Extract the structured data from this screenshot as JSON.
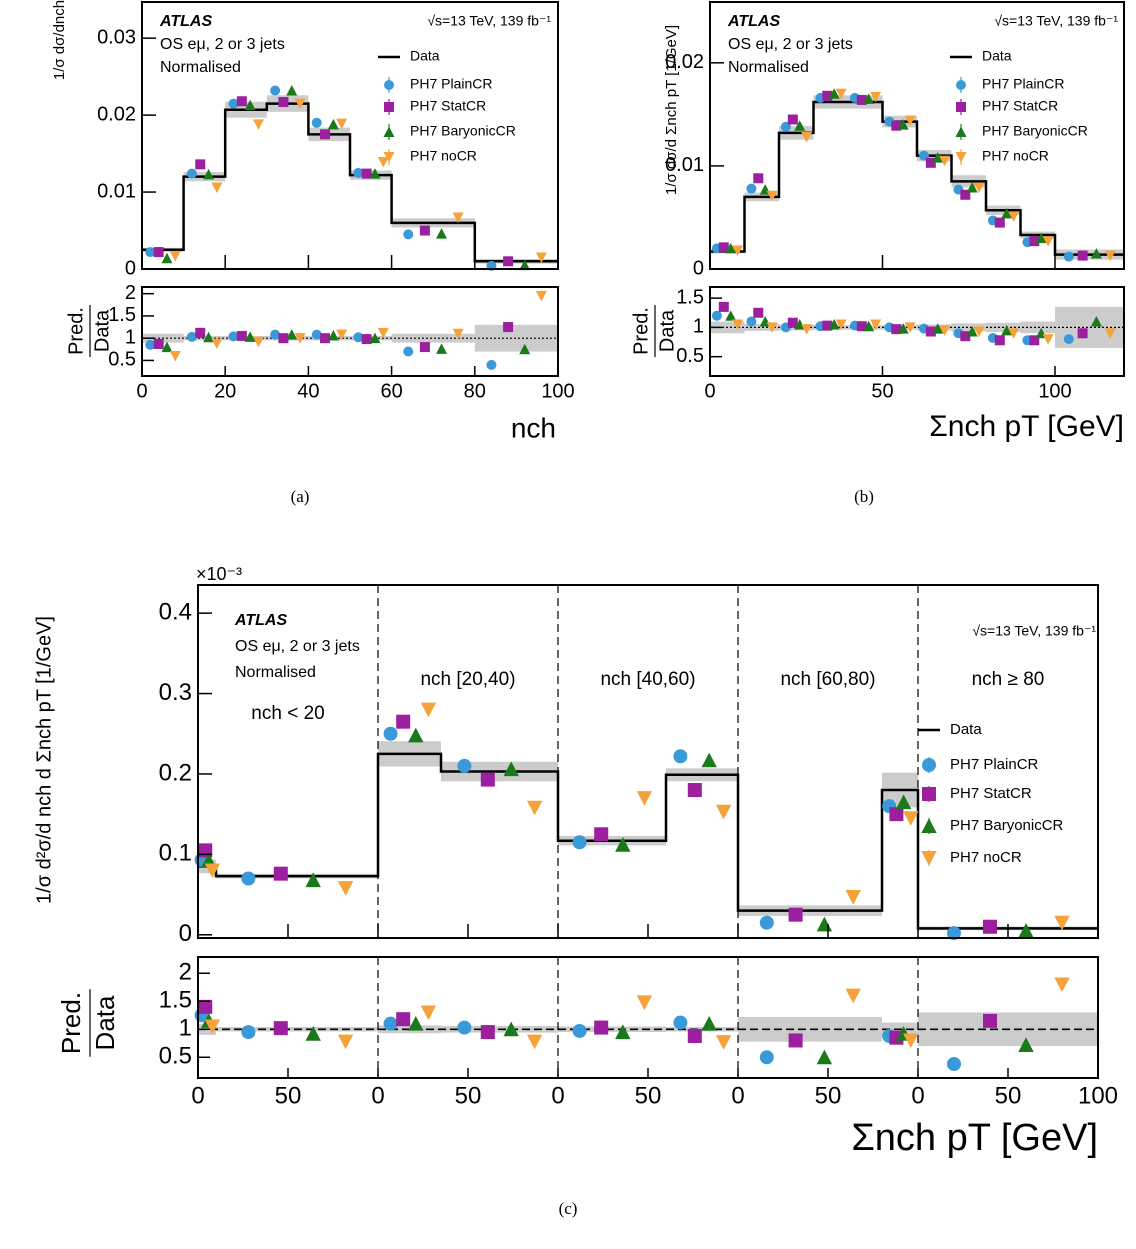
{
  "chart_data": [
    {
      "type": "histogram",
      "caption": "(a)",
      "x_label": "nch",
      "y_label": "1/σ dσ/dnch",
      "ratio_y_label": {
        "numerator": "Pred.",
        "denominator": "Data"
      },
      "texts": {
        "experiment": "ATLAS",
        "selection": "OS eμ, 2 or 3 jets",
        "normalisation": "Normalised",
        "energy": "√s=13 TeV, 139 fb⁻¹"
      },
      "bins": [
        0,
        10,
        20,
        30,
        40,
        50,
        60,
        80,
        100
      ],
      "data": {
        "name": "Data",
        "color": "#000000",
        "values": [
          0.0025,
          0.012,
          0.0207,
          0.0215,
          0.0175,
          0.0122,
          0.006,
          0.001
        ],
        "uncertainty": [
          0.1,
          0.05,
          0.05,
          0.05,
          0.05,
          0.05,
          0.1,
          0.3
        ]
      },
      "series": [
        {
          "name": "PH7 PlainCR",
          "color": "#3a9ad9",
          "marker": "circle",
          "values": [
            0.0022,
            0.0124,
            0.0215,
            0.0232,
            0.019,
            0.0125,
            0.0045,
            0.0004
          ],
          "ratio_values": [
            0.85,
            1.03,
            1.04,
            1.08,
            1.08,
            1.02,
            0.7,
            0.4
          ]
        },
        {
          "name": "PH7 StatCR",
          "color": "#9b1f9e",
          "marker": "square",
          "values": [
            0.0022,
            0.0136,
            0.0218,
            0.0217,
            0.0175,
            0.0124,
            0.005,
            0.001
          ],
          "ratio_values": [
            0.87,
            1.12,
            1.05,
            1.0,
            1.0,
            0.98,
            0.8,
            1.25
          ]
        },
        {
          "name": "PH7 BaryonicCR",
          "color": "#1a7a1a",
          "marker": "triangle-up",
          "values": [
            0.0014,
            0.0123,
            0.0213,
            0.0232,
            0.0188,
            0.0124,
            0.0046,
            0.0005
          ],
          "ratio_values": [
            0.8,
            1.02,
            1.03,
            1.08,
            1.06,
            1.0,
            0.76,
            0.75
          ]
        },
        {
          "name": "PH7 noCR",
          "color": "#f5a23a",
          "marker": "triangle-down",
          "values": [
            0.0017,
            0.0106,
            0.0188,
            0.0215,
            0.0189,
            0.0139,
            0.0067,
            0.0015
          ],
          "ratio_values": [
            0.6,
            0.88,
            0.92,
            1.0,
            1.08,
            1.12,
            1.1,
            1.95
          ]
        }
      ],
      "xlim": [
        0,
        100
      ],
      "xticks": [
        0,
        20,
        40,
        60,
        80,
        100
      ],
      "ylim": [
        0,
        0.0347
      ],
      "yticks": [
        0,
        0.01,
        0.02,
        0.03
      ],
      "ratio_ylim": [
        0.15,
        2.15
      ],
      "ratio_yticks": [
        0.5,
        1,
        1.5,
        2
      ],
      "reference_line": 1
    },
    {
      "type": "histogram",
      "caption": "(b)",
      "x_label": "Σnch pT [GeV]",
      "y_label": "1/σ dσ/d Σnch pT [1/GeV]",
      "ratio_y_label": {
        "numerator": "Pred.",
        "denominator": "Data"
      },
      "texts": {
        "experiment": "ATLAS",
        "selection": "OS eμ, 2 or 3 jets",
        "normalisation": "Normalised",
        "energy": "√s=13 TeV, 139 fb⁻¹"
      },
      "bins": [
        0,
        10,
        20,
        30,
        40,
        50,
        60,
        70,
        80,
        90,
        100,
        120
      ],
      "data": {
        "name": "Data",
        "color": "#000000",
        "values": [
          0.0017,
          0.007,
          0.0132,
          0.0162,
          0.0162,
          0.0143,
          0.011,
          0.0085,
          0.0057,
          0.0033,
          0.0014
        ],
        "uncertainty": [
          0.1,
          0.06,
          0.05,
          0.04,
          0.04,
          0.04,
          0.05,
          0.07,
          0.08,
          0.1,
          0.35
        ]
      },
      "series": [
        {
          "name": "PH7 PlainCR",
          "color": "#3a9ad9",
          "marker": "circle",
          "values": [
            0.002,
            0.0078,
            0.0138,
            0.0166,
            0.0166,
            0.0143,
            0.011,
            0.0077,
            0.0047,
            0.0026,
            0.0012
          ],
          "ratio_values": [
            1.2,
            1.1,
            1.0,
            1.02,
            1.03,
            1.0,
            0.98,
            0.9,
            0.82,
            0.78,
            0.8
          ]
        },
        {
          "name": "PH7 StatCR",
          "color": "#9b1f9e",
          "marker": "square",
          "values": [
            0.0021,
            0.0088,
            0.0145,
            0.0168,
            0.0164,
            0.0139,
            0.0103,
            0.0072,
            0.0045,
            0.0027,
            0.0013
          ],
          "ratio_values": [
            1.35,
            1.25,
            1.08,
            1.03,
            1.02,
            0.97,
            0.93,
            0.85,
            0.78,
            0.78,
            0.9
          ]
        },
        {
          "name": "PH7 BaryonicCR",
          "color": "#1a7a1a",
          "marker": "triangle-up",
          "values": [
            0.002,
            0.0077,
            0.0139,
            0.017,
            0.0165,
            0.014,
            0.0108,
            0.0079,
            0.0054,
            0.003,
            0.0015
          ],
          "ratio_values": [
            1.2,
            1.1,
            1.05,
            1.05,
            1.02,
            0.98,
            0.98,
            0.93,
            0.95,
            0.9,
            1.1
          ]
        },
        {
          "name": "PH7 noCR",
          "color": "#f5a23a",
          "marker": "triangle-down",
          "values": [
            0.0018,
            0.0071,
            0.0128,
            0.017,
            0.0167,
            0.0144,
            0.0105,
            0.0079,
            0.0051,
            0.0027,
            0.0013
          ],
          "ratio_values": [
            1.05,
            1.0,
            0.97,
            1.05,
            1.05,
            1.0,
            0.95,
            0.93,
            0.9,
            0.8,
            0.9
          ]
        }
      ],
      "xlim": [
        0,
        120
      ],
      "xticks": [
        0,
        50,
        100
      ],
      "ylim": [
        0,
        0.0259
      ],
      "yticks": [
        0,
        0.01,
        0.02
      ],
      "ratio_ylim": [
        0.17,
        1.69
      ],
      "ratio_yticks": [
        0.5,
        1,
        1.5
      ],
      "reference_line": 1
    },
    {
      "type": "histogram",
      "caption": "(c)",
      "x_label": "Σnch pT [GeV]",
      "y_label": "1/σ d²σ/d nch d Σnch pT [1/GeV]",
      "y_multiplier": "×10⁻³",
      "ratio_y_label": {
        "numerator": "Pred.",
        "denominator": "Data"
      },
      "texts": {
        "experiment": "ATLAS",
        "selection": "OS eμ, 2 or 3 jets",
        "normalisation": "Normalised",
        "energy": "√s=13 TeV, 139 fb⁻¹"
      },
      "sections": [
        {
          "label": "nch < 20",
          "start": 0
        },
        {
          "label": "nch [20,40)",
          "start": 100
        },
        {
          "label": "nch [40,60)",
          "start": 200
        },
        {
          "label": "nch [60,80)",
          "start": 300
        },
        {
          "label": "nch ≥ 80",
          "start": 400
        }
      ],
      "bins": [
        0,
        10,
        100,
        135,
        200,
        260,
        300,
        380,
        400,
        500
      ],
      "data": {
        "name": "Data",
        "color": "#000000",
        "values": [
          0.085,
          0.073,
          0.225,
          0.203,
          0.117,
          0.199,
          0.03,
          0.18,
          0.008
        ],
        "uncertainty": [
          0.1,
          0.04,
          0.07,
          0.06,
          0.05,
          0.04,
          0.22,
          0.12,
          0.3
        ]
      },
      "series": [
        {
          "name": "PH7 PlainCR",
          "color": "#3a9ad9",
          "marker": "circle",
          "values": [
            0.093,
            0.07,
            0.25,
            0.21,
            0.115,
            0.222,
            0.015,
            0.16,
            0.002
          ],
          "ratio_values": [
            1.25,
            0.95,
            1.1,
            1.03,
            0.97,
            1.12,
            0.5,
            0.88,
            0.38
          ]
        },
        {
          "name": "PH7 StatCR",
          "color": "#9b1f9e",
          "marker": "square",
          "values": [
            0.105,
            0.076,
            0.265,
            0.193,
            0.125,
            0.18,
            0.025,
            0.15,
            0.01
          ],
          "ratio_values": [
            1.4,
            1.02,
            1.18,
            0.95,
            1.03,
            0.88,
            0.8,
            0.85,
            1.15
          ]
        },
        {
          "name": "PH7 BaryonicCR",
          "color": "#1a7a1a",
          "marker": "triangle-up",
          "values": [
            0.092,
            0.068,
            0.248,
            0.206,
            0.112,
            0.217,
            0.013,
            0.165,
            0.005
          ],
          "ratio_values": [
            1.15,
            0.92,
            1.1,
            1.0,
            0.95,
            1.1,
            0.5,
            0.92,
            0.72
          ]
        },
        {
          "name": "PH7 noCR",
          "color": "#f5a23a",
          "marker": "triangle-down",
          "values": [
            0.08,
            0.058,
            0.28,
            0.158,
            0.17,
            0.153,
            0.047,
            0.145,
            0.015
          ],
          "ratio_values": [
            1.05,
            0.78,
            1.3,
            0.78,
            1.48,
            0.77,
            1.6,
            0.8,
            1.8
          ]
        }
      ],
      "xlim": [
        0,
        500
      ],
      "xticks": [
        0,
        50,
        {
          "value": 100,
          "label": "0"
        },
        {
          "value": 150,
          "label": "50"
        },
        {
          "value": 200,
          "label": "0"
        },
        {
          "value": 250,
          "label": "50"
        },
        {
          "value": 300,
          "label": "0"
        },
        {
          "value": 350,
          "label": "50"
        },
        {
          "value": 400,
          "label": "0"
        },
        {
          "value": 450,
          "label": "50"
        },
        {
          "value": 500,
          "label": "100"
        }
      ],
      "ylim": [
        -0.004,
        0.435
      ],
      "yticks": [
        0,
        0.1,
        0.2,
        0.3,
        0.4
      ],
      "ratio_ylim": [
        0.13,
        2.29
      ],
      "ratio_yticks": [
        0.5,
        1,
        1.5,
        2
      ],
      "reference_line": 1
    }
  ]
}
